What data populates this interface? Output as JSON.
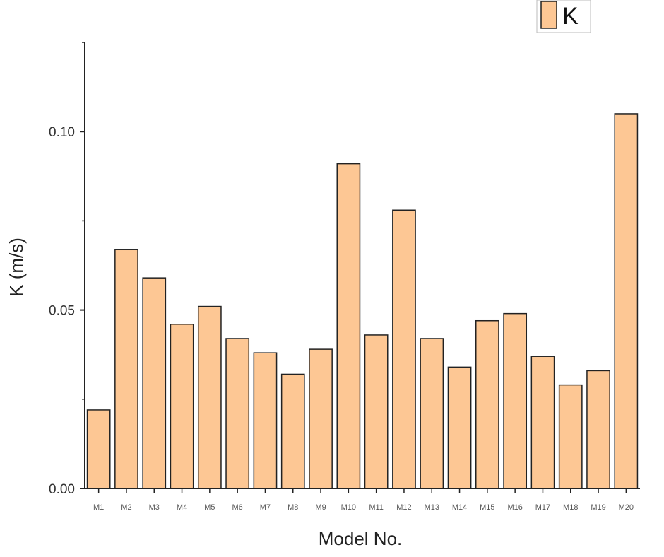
{
  "chart_data": {
    "type": "bar",
    "title": "",
    "xlabel": "Model No.",
    "ylabel": "K (m/s)",
    "ylim": [
      0,
      0.125
    ],
    "yticks": [
      0.0,
      0.05,
      0.1
    ],
    "ytick_labels": [
      "0.00",
      "0.05",
      "0.10"
    ],
    "grid": false,
    "legend_position": "top-right",
    "categories": [
      "M1",
      "M2",
      "M3",
      "M4",
      "M5",
      "M6",
      "M7",
      "M8",
      "M9",
      "M10",
      "M11",
      "M12",
      "M13",
      "M14",
      "M15",
      "M16",
      "M17",
      "M18",
      "M19",
      "M20"
    ],
    "series": [
      {
        "name": "K",
        "color": "#FDC794",
        "edge_color": "#222222",
        "values": [
          0.022,
          0.067,
          0.059,
          0.046,
          0.051,
          0.042,
          0.038,
          0.032,
          0.039,
          0.091,
          0.043,
          0.078,
          0.042,
          0.034,
          0.047,
          0.049,
          0.037,
          0.029,
          0.033,
          0.105
        ]
      }
    ]
  }
}
